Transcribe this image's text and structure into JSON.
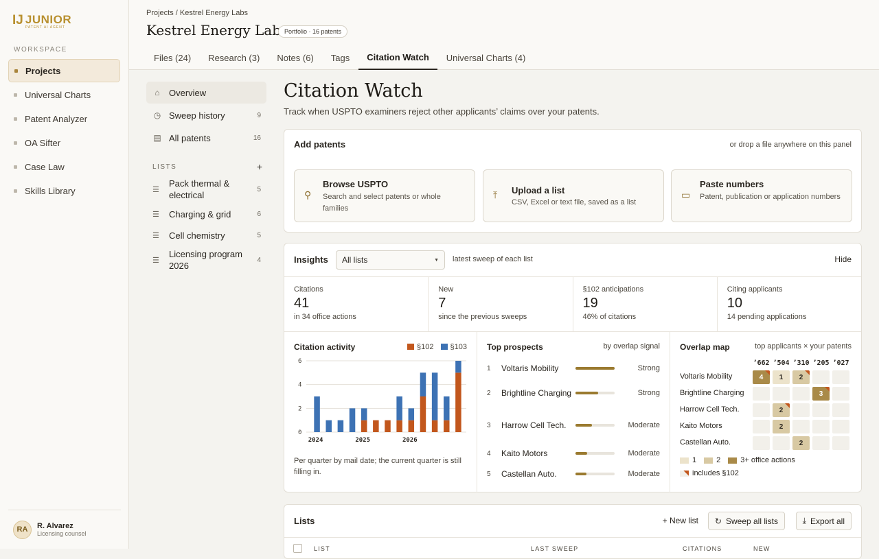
{
  "logo": {
    "mark": "IJ",
    "word": "JUNIOR",
    "tagline": "PATENT AI AGENT"
  },
  "sidebar": {
    "workspace_label": "WORKSPACE",
    "items": [
      {
        "label": "Projects",
        "active": true
      },
      {
        "label": "Universal Charts"
      },
      {
        "label": "Patent Analyzer"
      },
      {
        "label": "OA Sifter"
      },
      {
        "label": "Case Law"
      },
      {
        "label": "Skills Library"
      }
    ],
    "user": {
      "initials": "RA",
      "name": "R. Alvarez",
      "role": "Licensing counsel"
    }
  },
  "header": {
    "breadcrumb": "Projects / Kestrel Energy Labs",
    "title": "Kestrel Energy Labs",
    "badge": "Portfolio · 16 patents",
    "tabs": [
      {
        "label": "Files (24)"
      },
      {
        "label": "Research (3)"
      },
      {
        "label": "Notes (6)"
      },
      {
        "label": "Tags"
      },
      {
        "label": "Citation Watch",
        "active": true
      },
      {
        "label": "Universal Charts (4)"
      }
    ]
  },
  "subnav": {
    "items": [
      {
        "label": "Overview",
        "count": "",
        "icon": "home-icon"
      },
      {
        "label": "Sweep history",
        "count": "9",
        "icon": "clock-icon"
      },
      {
        "label": "All patents",
        "count": "16",
        "icon": "document-icon"
      }
    ],
    "lists_label": "LISTS",
    "add_symbol": "+",
    "lists": [
      {
        "label": "Pack thermal & electrical",
        "count": "5"
      },
      {
        "label": "Charging & grid",
        "count": "6"
      },
      {
        "label": "Cell chemistry",
        "count": "5"
      },
      {
        "label": "Licensing program 2026",
        "count": "4"
      }
    ]
  },
  "main": {
    "title": "Citation Watch",
    "subtitle": "Track when USPTO examiners reject other applicants’ claims over your patents."
  },
  "add_patents": {
    "title": "Add patents",
    "drop_hint": "or drop a file anywhere on this panel",
    "cards": [
      {
        "title": "Browse USPTO",
        "desc": "Search and select patents or whole families",
        "icon": "search-icon"
      },
      {
        "title": "Upload a list",
        "desc": "CSV, Excel or text file, saved as a list",
        "icon": "upload-icon"
      },
      {
        "title": "Paste numbers",
        "desc": "Patent, publication or application numbers",
        "icon": "clipboard-icon"
      }
    ]
  },
  "insights": {
    "title": "Insights",
    "select_value": "All lists",
    "note": "latest sweep of each list",
    "hide_label": "Hide",
    "stats": [
      {
        "label": "Citations",
        "value": "41",
        "sub": "in 34 office actions"
      },
      {
        "label": "New",
        "value": "7",
        "sub": "since the previous sweeps"
      },
      {
        "label": "§102 anticipations",
        "value": "19",
        "sub": "46% of citations"
      },
      {
        "label": "Citing applicants",
        "value": "10",
        "sub": "14 pending applications"
      }
    ],
    "activity_title": "Citation activity",
    "activity_footnote": "Per quarter by mail date; the current quarter is still filling in.",
    "prospects_title": "Top prospects",
    "prospects_note": "by overlap signal",
    "prospects": [
      {
        "rank": "1",
        "name": "Voltaris Mobility",
        "signal": "Strong",
        "level": 1.0
      },
      {
        "rank": "2",
        "name": "Brightline Charging",
        "signal": "Strong",
        "level": 0.58
      },
      {
        "rank": "3",
        "name": "Harrow Cell Tech.",
        "signal": "Moderate",
        "level": 0.42
      },
      {
        "rank": "4",
        "name": "Kaito Motors",
        "signal": "Moderate",
        "level": 0.3
      },
      {
        "rank": "5",
        "name": "Castellan Auto.",
        "signal": "Moderate",
        "level": 0.28
      }
    ],
    "overlap_title": "Overlap map",
    "overlap_note": "top applicants × your patents",
    "overlap_cols": [
      "’662",
      "’504",
      "’310",
      "’205",
      "’027"
    ],
    "overlap_rows": [
      {
        "name": "Voltaris Mobility",
        "cells": [
          {
            "v": "4",
            "lvl": 3,
            "p102": true
          },
          {
            "v": "1",
            "lvl": 1
          },
          {
            "v": "2",
            "lvl": 2,
            "p102": true
          },
          {
            "v": ""
          },
          {
            "v": ""
          }
        ]
      },
      {
        "name": "Brightline Charging",
        "cells": [
          {
            "v": ""
          },
          {
            "v": ""
          },
          {
            "v": ""
          },
          {
            "v": "3",
            "lvl": 3,
            "p102": true
          },
          {
            "v": ""
          }
        ]
      },
      {
        "name": "Harrow Cell Tech.",
        "cells": [
          {
            "v": ""
          },
          {
            "v": "2",
            "lvl": 2,
            "p102": true
          },
          {
            "v": ""
          },
          {
            "v": ""
          },
          {
            "v": ""
          }
        ]
      },
      {
        "name": "Kaito Motors",
        "cells": [
          {
            "v": ""
          },
          {
            "v": "2",
            "lvl": 2
          },
          {
            "v": ""
          },
          {
            "v": ""
          },
          {
            "v": ""
          }
        ]
      },
      {
        "name": "Castellan Auto.",
        "cells": [
          {
            "v": ""
          },
          {
            "v": ""
          },
          {
            "v": "2",
            "lvl": 2
          },
          {
            "v": ""
          },
          {
            "v": ""
          }
        ]
      }
    ],
    "overlap_legend": {
      "l1": "1",
      "l2": "2",
      "l3": "3+ office actions",
      "p102": "includes §102"
    }
  },
  "lists_panel": {
    "title": "Lists",
    "new_list": "+ New list",
    "sweep_all": "Sweep all lists",
    "export_all": "Export all",
    "columns": [
      "LIST",
      "LAST SWEEP",
      "CITATIONS",
      "NEW"
    ]
  },
  "colors": {
    "s102": "#c2571d",
    "s103": "#3d72b4",
    "accent": "#9a7a2f"
  },
  "chart_data": {
    "type": "bar",
    "title": "Citation activity",
    "stacked": true,
    "categories": [
      "2024 Q1",
      "2024 Q2",
      "2024 Q3",
      "2024 Q4",
      "2025 Q1",
      "2025 Q2",
      "2025 Q3",
      "2025 Q4",
      "2026 Q1",
      "2026 Q2",
      "2026 Q3",
      "2026 Q4",
      "2027 Q1"
    ],
    "x_tick_labels": [
      "2024",
      "2025",
      "2026"
    ],
    "series": [
      {
        "name": "§102",
        "values": [
          0,
          0,
          0,
          0,
          1,
          1,
          1,
          1,
          1,
          3,
          1,
          1,
          5
        ]
      },
      {
        "name": "§103",
        "values": [
          3,
          1,
          1,
          2,
          1,
          0,
          0,
          2,
          1,
          2,
          4,
          2,
          1
        ]
      }
    ],
    "ylim": [
      0,
      6
    ],
    "yticks": [
      0,
      2,
      4,
      6
    ],
    "grid": true,
    "legend": "top-right"
  }
}
